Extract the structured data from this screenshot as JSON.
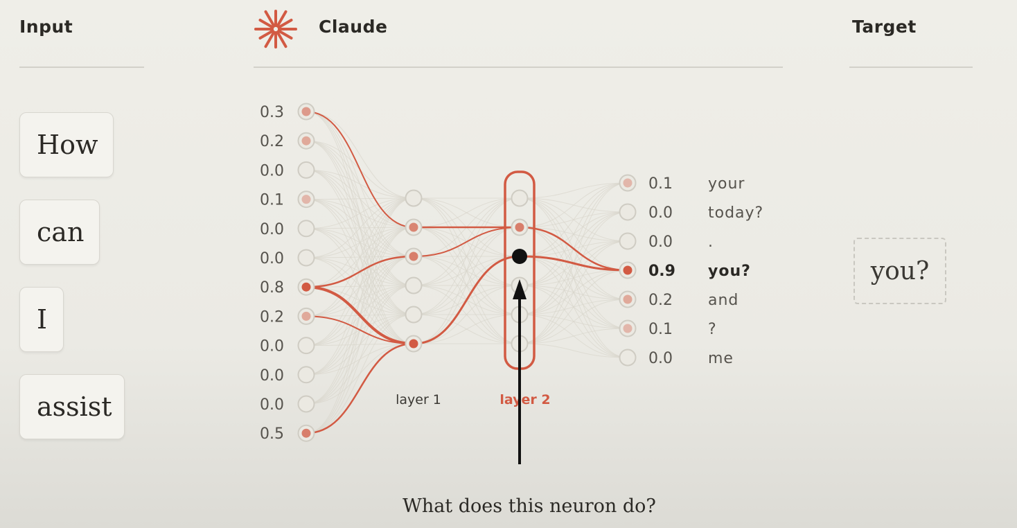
{
  "columns": {
    "input_header": "Input",
    "model_header": "Claude",
    "target_header": "Target"
  },
  "input_tokens": [
    "How",
    "can",
    "I",
    "assist"
  ],
  "target_token": "you?",
  "network": {
    "input_values": [
      "0.3",
      "0.2",
      "0.0",
      "0.1",
      "0.0",
      "0.0",
      "0.8",
      "0.2",
      "0.0",
      "0.0",
      "0.0",
      "0.5"
    ],
    "layer1_label": "layer 1",
    "layer2_label": "layer 2",
    "outputs": [
      {
        "value": "0.1",
        "token": "your"
      },
      {
        "value": "0.0",
        "token": "today?"
      },
      {
        "value": "0.0",
        "token": "."
      },
      {
        "value": "0.9",
        "token": "you?",
        "highlight": true
      },
      {
        "value": "0.2",
        "token": "and"
      },
      {
        "value": "0.1",
        "token": "?"
      },
      {
        "value": "0.0",
        "token": "me"
      }
    ]
  },
  "caption": "What does this neuron do?",
  "colors": {
    "accent": "#d25a43",
    "node_fill": "#ebe9e2",
    "node_stroke": "#cfccc3",
    "edge": "#d9d6cc",
    "selected_neuron": "#111111",
    "label_text": "#56534d"
  },
  "icons": {
    "model_logo": "claude-sunburst-icon"
  }
}
